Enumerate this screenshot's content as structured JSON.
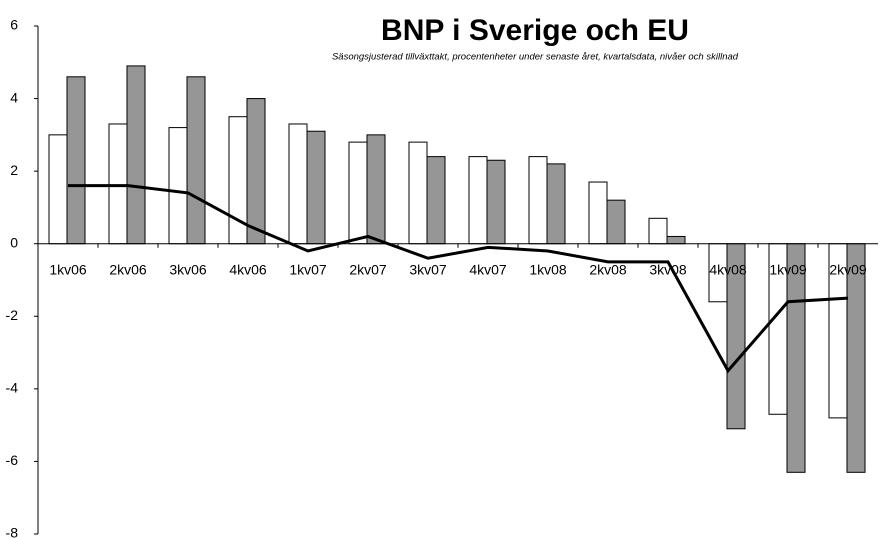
{
  "chart_data": {
    "type": "bar",
    "title": "BNP i Sverige och EU",
    "subtitle": "Säsongsjusterad tillväxttakt, procentenheter under senaste året, kvartalsdata, nivåer och skillnad",
    "categories": [
      "1kv06",
      "2kv06",
      "3kv06",
      "4kv06",
      "1kv07",
      "2kv07",
      "3kv07",
      "4kv07",
      "1kv08",
      "2kv08",
      "3kv08",
      "4kv08",
      "1kv09",
      "2kv09"
    ],
    "series": [
      {
        "type": "bar",
        "color": "#ffffff",
        "values": [
          3.0,
          3.3,
          3.2,
          3.5,
          3.3,
          2.8,
          2.8,
          2.4,
          2.4,
          1.7,
          0.7,
          -1.6,
          -4.7,
          -4.8
        ]
      },
      {
        "type": "bar",
        "color": "#969696",
        "values": [
          4.6,
          4.9,
          4.6,
          4.0,
          3.1,
          3.0,
          2.4,
          2.3,
          2.2,
          1.2,
          0.2,
          -5.1,
          -6.3,
          -6.3
        ]
      },
      {
        "type": "line",
        "color": "#000000",
        "values": [
          1.6,
          1.6,
          1.4,
          0.5,
          -0.2,
          0.2,
          -0.4,
          -0.1,
          -0.2,
          -0.5,
          -0.5,
          -3.5,
          -1.6,
          -1.5
        ]
      }
    ],
    "ylim": [
      -8,
      6
    ],
    "yticks": [
      -8,
      -6,
      -4,
      -2,
      0,
      2,
      4,
      6
    ],
    "grid": false
  }
}
